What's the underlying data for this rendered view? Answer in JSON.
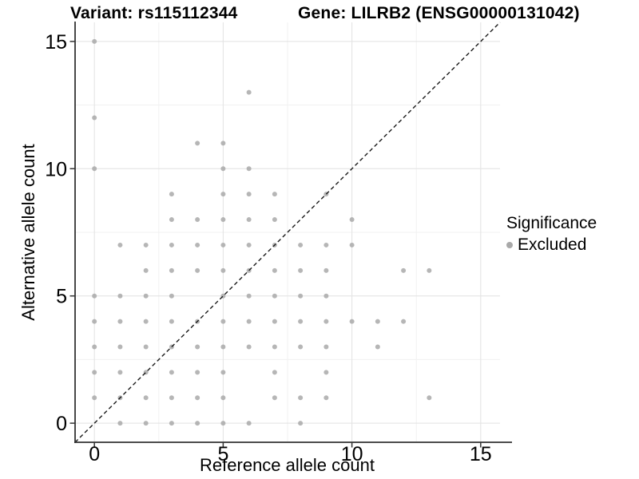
{
  "chart_data": {
    "type": "scatter",
    "title_left": "Variant: rs115112344",
    "title_right": "Gene: LILRB2 (ENSG00000131042)",
    "xlabel": "Reference allele count",
    "ylabel": "Alternative allele count",
    "xlim": [
      0,
      15
    ],
    "ylim": [
      0,
      15
    ],
    "x_ticks": [
      0,
      5,
      10,
      15
    ],
    "y_ticks": [
      0,
      5,
      10,
      15
    ],
    "x_minor_ticks": [
      2.5,
      7.5,
      12.5
    ],
    "y_minor_ticks": [
      2.5,
      7.5,
      12.5
    ],
    "grid": "major and minor, light gray on white",
    "reference_line": {
      "type": "identity y=x",
      "style": "dashed",
      "color": "#1a1a1a"
    },
    "legend": {
      "title": "Significance",
      "position": "right",
      "items": [
        {
          "label": "Excluded",
          "color": "#a9a9a9"
        }
      ]
    },
    "series": [
      {
        "name": "Excluded",
        "marker": "circle",
        "color": "#a9a9a9",
        "points": [
          [
            0,
            15
          ],
          [
            6,
            13
          ],
          [
            0,
            12
          ],
          [
            4,
            11
          ],
          [
            5,
            11
          ],
          [
            0,
            10
          ],
          [
            5,
            10
          ],
          [
            6,
            10
          ],
          [
            3,
            9
          ],
          [
            5,
            9
          ],
          [
            6,
            9
          ],
          [
            7,
            9
          ],
          [
            9,
            9
          ],
          [
            3,
            8
          ],
          [
            4,
            8
          ],
          [
            5,
            8
          ],
          [
            6,
            8
          ],
          [
            7,
            8
          ],
          [
            10,
            8
          ],
          [
            1,
            7
          ],
          [
            2,
            7
          ],
          [
            3,
            7
          ],
          [
            4,
            7
          ],
          [
            5,
            7
          ],
          [
            6,
            7
          ],
          [
            7,
            7
          ],
          [
            8,
            7
          ],
          [
            9,
            7
          ],
          [
            10,
            7
          ],
          [
            2,
            6
          ],
          [
            3,
            6
          ],
          [
            4,
            6
          ],
          [
            5,
            6
          ],
          [
            6,
            6
          ],
          [
            7,
            6
          ],
          [
            8,
            6
          ],
          [
            9,
            6
          ],
          [
            12,
            6
          ],
          [
            13,
            6
          ],
          [
            0,
            5
          ],
          [
            1,
            5
          ],
          [
            2,
            5
          ],
          [
            3,
            5
          ],
          [
            5,
            5
          ],
          [
            6,
            5
          ],
          [
            7,
            5
          ],
          [
            8,
            5
          ],
          [
            9,
            5
          ],
          [
            0,
            4
          ],
          [
            1,
            4
          ],
          [
            2,
            4
          ],
          [
            3,
            4
          ],
          [
            4,
            4
          ],
          [
            5,
            4
          ],
          [
            6,
            4
          ],
          [
            7,
            4
          ],
          [
            8,
            4
          ],
          [
            9,
            4
          ],
          [
            10,
            4
          ],
          [
            11,
            4
          ],
          [
            12,
            4
          ],
          [
            0,
            3
          ],
          [
            1,
            3
          ],
          [
            2,
            3
          ],
          [
            3,
            3
          ],
          [
            4,
            3
          ],
          [
            5,
            3
          ],
          [
            6,
            3
          ],
          [
            7,
            3
          ],
          [
            8,
            3
          ],
          [
            9,
            3
          ],
          [
            11,
            3
          ],
          [
            0,
            2
          ],
          [
            1,
            2
          ],
          [
            2,
            2
          ],
          [
            3,
            2
          ],
          [
            4,
            2
          ],
          [
            5,
            2
          ],
          [
            7,
            2
          ],
          [
            9,
            2
          ],
          [
            0,
            1
          ],
          [
            1,
            1
          ],
          [
            2,
            1
          ],
          [
            3,
            1
          ],
          [
            4,
            1
          ],
          [
            5,
            1
          ],
          [
            7,
            1
          ],
          [
            8,
            1
          ],
          [
            9,
            1
          ],
          [
            13,
            1
          ],
          [
            1,
            0
          ],
          [
            2,
            0
          ],
          [
            3,
            0
          ],
          [
            4,
            0
          ],
          [
            5,
            0
          ],
          [
            6,
            0
          ],
          [
            8,
            0
          ]
        ]
      }
    ]
  },
  "colors": {
    "background": "#ffffff",
    "point": "#a9a9a9",
    "grid_major": "#e4e4e4",
    "grid_minor": "#f1f1f1",
    "axis": "#333333",
    "text": "#000000"
  }
}
